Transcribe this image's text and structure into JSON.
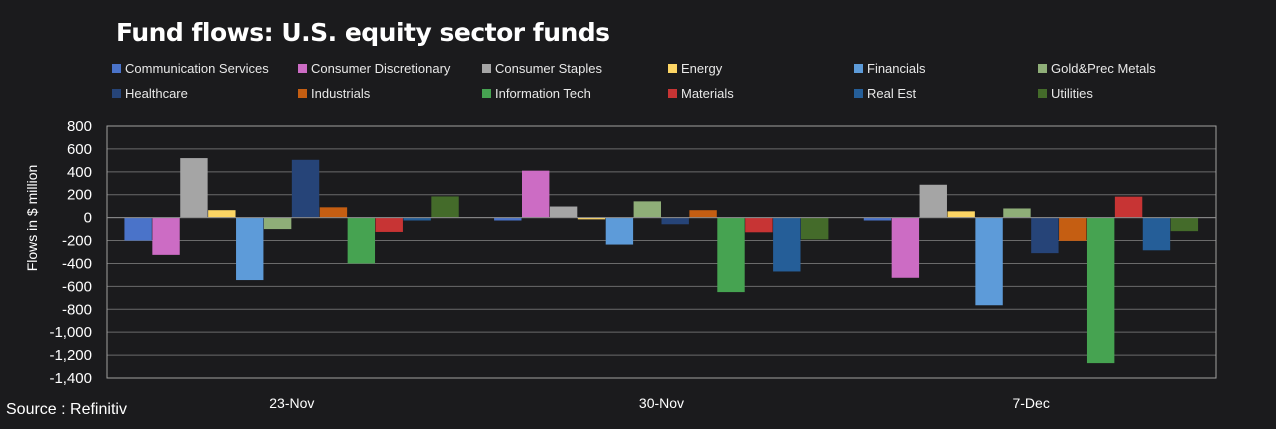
{
  "chart_data": {
    "type": "bar",
    "title": "Fund flows: U.S. equity sector funds",
    "xlabel": "",
    "ylabel": "Flows in $ million",
    "ylim": [
      -1400,
      800
    ],
    "yticks": [
      800,
      600,
      400,
      200,
      0,
      -200,
      -400,
      -600,
      -800,
      -1000,
      -1200,
      -1400
    ],
    "ytick_labels": [
      "800",
      "600",
      "400",
      "200",
      "0",
      "-200",
      "-400",
      "-600",
      "-800",
      "-1,000",
      "-1,200",
      "-1,400"
    ],
    "grid": true,
    "legend_position": "top",
    "categories": [
      "23-Nov",
      "30-Nov",
      "7-Dec"
    ],
    "series": [
      {
        "name": "Communication Services",
        "color": "#4a73c9",
        "values": [
          -200,
          -25,
          -25
        ]
      },
      {
        "name": "Consumer Discretionary",
        "color": "#cc6cc4",
        "values": [
          -325,
          410,
          -525
        ]
      },
      {
        "name": "Consumer Staples",
        "color": "#a5a5a5",
        "values": [
          520,
          97,
          287
        ]
      },
      {
        "name": "Energy",
        "color": "#fcd564",
        "values": [
          65,
          -15,
          55
        ]
      },
      {
        "name": "Financials",
        "color": "#5d9bd9",
        "values": [
          -545,
          -235,
          -765
        ]
      },
      {
        "name": "Gold&Prec Metals",
        "color": "#8fae78",
        "values": [
          -100,
          142,
          80
        ]
      },
      {
        "name": "Healthcare",
        "color": "#264478",
        "values": [
          505,
          -58,
          -310
        ]
      },
      {
        "name": "Industrials",
        "color": "#c55e12",
        "values": [
          90,
          65,
          -203
        ]
      },
      {
        "name": "Information Tech",
        "color": "#46a351",
        "values": [
          -400,
          -650,
          -1270
        ]
      },
      {
        "name": "Materials",
        "color": "#c73434",
        "values": [
          -125,
          -128,
          183
        ]
      },
      {
        "name": "Real Est",
        "color": "#255e98",
        "values": [
          -25,
          -470,
          -285
        ]
      },
      {
        "name": "Utilities",
        "color": "#446b2a",
        "values": [
          185,
          -190,
          -118
        ]
      }
    ]
  },
  "source": "Source : Refinitiv"
}
